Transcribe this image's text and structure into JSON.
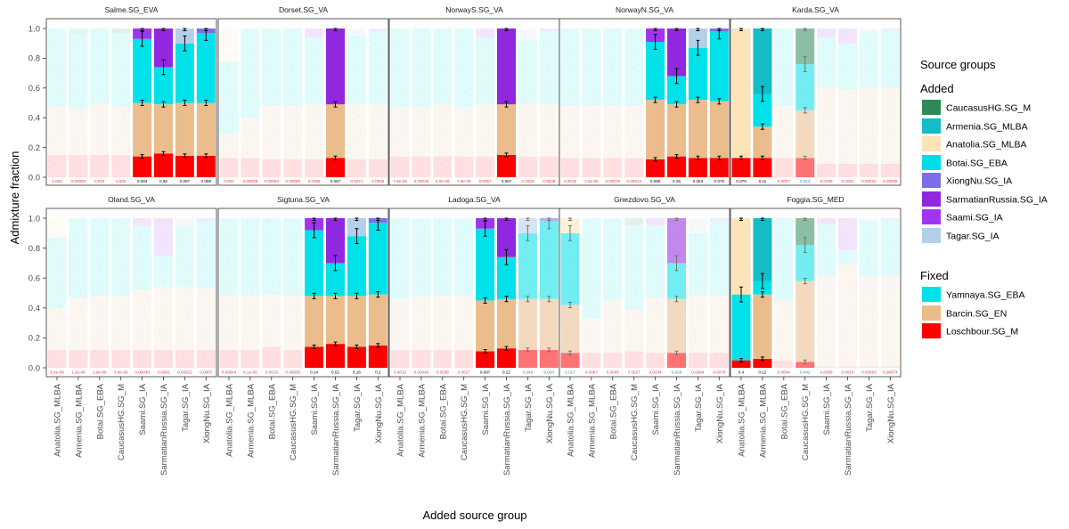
{
  "chart_data": {
    "type": "bar",
    "stacked": true,
    "xlabel": "Added source group",
    "ylabel": "Admixture fraction",
    "ylim": [
      0,
      1
    ],
    "y_ticks": [
      "0.0",
      "0.2",
      "0.4",
      "0.6",
      "0.8",
      "1.0"
    ],
    "categories": [
      "Anatolia.SG_MLBA",
      "Armenia.SG_MLBA",
      "Botai.SG_EBA",
      "CaucasusHG.SG_M",
      "Saami.SG_IA",
      "SarmatianRussia.SG_IA",
      "Tagar.SG_IA",
      "XiongNu.SG_IA"
    ],
    "component_order": [
      "Loschbour.SG_M",
      "Barcin.SG_EN",
      "Yamnaya.SG_EBA",
      "added source"
    ],
    "panels": [
      {
        "title": "Salme.SG_EVA",
        "bars": [
          {
            "v": [
              0.15,
              0.32,
              0.53,
              0.0
            ],
            "p": "0.002"
          },
          {
            "v": [
              0.15,
              0.31,
              0.5,
              0.04
            ],
            "p": "0.00093"
          },
          {
            "v": [
              0.15,
              0.34,
              0.51,
              0.0
            ],
            "p": "0.004"
          },
          {
            "v": [
              0.15,
              0.32,
              0.5,
              0.03
            ],
            "p": "0.002"
          },
          {
            "v": [
              0.14,
              0.36,
              0.43,
              0.07
            ],
            "p": "0.083"
          },
          {
            "v": [
              0.16,
              0.33,
              0.25,
              0.26
            ],
            "p": "0.66"
          },
          {
            "v": [
              0.145,
              0.355,
              0.4,
              0.1
            ],
            "p": "0.097"
          },
          {
            "v": [
              0.145,
              0.355,
              0.47,
              0.03
            ],
            "p": "0.098"
          }
        ]
      },
      {
        "title": "Dorset.SG_VA",
        "bars": [
          {
            "v": [
              0.13,
              0.16,
              0.49,
              0.22
            ],
            "p": "0.002"
          },
          {
            "v": [
              0.13,
              0.27,
              0.6,
              0.0
            ],
            "p": "0.00048"
          },
          {
            "v": [
              0.12,
              0.36,
              0.52,
              0.0
            ],
            "p": "0.00064"
          },
          {
            "v": [
              0.12,
              0.36,
              0.52,
              0.0
            ],
            "p": "0.00089"
          },
          {
            "v": [
              0.12,
              0.37,
              0.45,
              0.06
            ],
            "p": "0.0066"
          },
          {
            "v": [
              0.13,
              0.36,
              0.0,
              0.51
            ],
            "p": "0.067"
          },
          {
            "v": [
              0.12,
              0.37,
              0.46,
              0.05
            ],
            "p": "0.0071"
          },
          {
            "v": [
              0.12,
              0.37,
              0.49,
              0.02
            ],
            "p": "0.0066"
          }
        ]
      },
      {
        "title": "NorwayS.SG_VA",
        "bars": [
          {
            "v": [
              0.14,
              0.33,
              0.53,
              0.0
            ],
            "p": "7.9e-08"
          },
          {
            "v": [
              0.14,
              0.33,
              0.53,
              0.0
            ],
            "p": "0.00028"
          },
          {
            "v": [
              0.14,
              0.35,
              0.51,
              0.0
            ],
            "p": "6.8e-06"
          },
          {
            "v": [
              0.14,
              0.33,
              0.53,
              0.0
            ],
            "p": "7.9e-09"
          },
          {
            "v": [
              0.14,
              0.35,
              0.45,
              0.06
            ],
            "p": "0.0057"
          },
          {
            "v": [
              0.15,
              0.34,
              0.0,
              0.51
            ],
            "p": "0.097"
          },
          {
            "v": [
              0.14,
              0.35,
              0.43,
              0.08
            ],
            "p": "0.0028"
          },
          {
            "v": [
              0.14,
              0.35,
              0.49,
              0.02
            ],
            "p": "0.0039"
          }
        ]
      },
      {
        "title": "NorwayN.SG_VA",
        "bars": [
          {
            "v": [
              0.13,
              0.35,
              0.52,
              0.0
            ],
            "p": "0.0016"
          },
          {
            "v": [
              0.13,
              0.35,
              0.52,
              0.0
            ],
            "p": "2.3e-06"
          },
          {
            "v": [
              0.13,
              0.35,
              0.52,
              0.0
            ],
            "p": "0.00076"
          },
          {
            "v": [
              0.13,
              0.35,
              0.52,
              0.0
            ],
            "p": "0.00014"
          },
          {
            "v": [
              0.12,
              0.4,
              0.39,
              0.09
            ],
            "p": "0.055"
          },
          {
            "v": [
              0.14,
              0.35,
              0.19,
              0.32
            ],
            "p": "0.25"
          },
          {
            "v": [
              0.13,
              0.39,
              0.35,
              0.13
            ],
            "p": "0.083"
          },
          {
            "v": [
              0.13,
              0.38,
              0.47,
              0.02
            ],
            "p": "0.076"
          }
        ]
      },
      {
        "title": "Karda.SG_VA",
        "bars": [
          {
            "v": [
              0.13,
              0.0,
              0.0,
              0.87
            ],
            "p": "0.079"
          },
          {
            "v": [
              0.13,
              0.21,
              0.22,
              0.44
            ],
            "p": "0.11"
          },
          {
            "v": [
              0.13,
              0.35,
              0.52,
              0.0
            ],
            "p": "0.0007"
          },
          {
            "v": [
              0.13,
              0.32,
              0.31,
              0.24
            ],
            "p": "0.013"
          },
          {
            "v": [
              0.09,
              0.51,
              0.34,
              0.06
            ],
            "p": "0.0036"
          },
          {
            "v": [
              0.09,
              0.5,
              0.31,
              0.1
            ],
            "p": "0.0062"
          },
          {
            "v": [
              0.09,
              0.51,
              0.38,
              0.02
            ],
            "p": "0.00032"
          },
          {
            "v": [
              0.09,
              0.51,
              0.39,
              0.01
            ],
            "p": "0.00039"
          }
        ]
      },
      {
        "title": "Oland.SG_VA",
        "bars": [
          {
            "v": [
              0.12,
              0.28,
              0.47,
              0.13
            ],
            "p": "5.6e-09"
          },
          {
            "v": [
              0.12,
              0.35,
              0.53,
              0.0
            ],
            "p": "1.3e-08"
          },
          {
            "v": [
              0.12,
              0.36,
              0.52,
              0.0
            ],
            "p": "2.9e-08"
          },
          {
            "v": [
              0.12,
              0.36,
              0.52,
              0.0
            ],
            "p": "3.8e-09"
          },
          {
            "v": [
              0.12,
              0.4,
              0.43,
              0.05
            ],
            "p": "0.00033"
          },
          {
            "v": [
              0.12,
              0.42,
              0.21,
              0.25
            ],
            "p": "0.0002"
          },
          {
            "v": [
              0.12,
              0.42,
              0.4,
              0.06
            ],
            "p": "0.00015"
          },
          {
            "v": [
              0.12,
              0.41,
              0.45,
              0.02
            ],
            "p": "0.0007"
          }
        ]
      },
      {
        "title": "Sigtuna.SG_VA",
        "bars": [
          {
            "v": [
              0.12,
              0.36,
              0.52,
              0.0
            ],
            "p": "0.00044"
          },
          {
            "v": [
              0.12,
              0.36,
              0.52,
              0.0
            ],
            "p": "8.1e-09"
          },
          {
            "v": [
              0.14,
              0.35,
              0.51,
              0.0
            ],
            "p": "0.0019"
          },
          {
            "v": [
              0.12,
              0.36,
              0.52,
              0.0
            ],
            "p": "0.00035"
          },
          {
            "v": [
              0.14,
              0.34,
              0.44,
              0.08
            ],
            "p": "0.14"
          },
          {
            "v": [
              0.16,
              0.32,
              0.22,
              0.3
            ],
            "p": "0.52"
          },
          {
            "v": [
              0.14,
              0.34,
              0.4,
              0.12
            ],
            "p": "0.16"
          },
          {
            "v": [
              0.15,
              0.34,
              0.48,
              0.03
            ],
            "p": "0.2"
          }
        ]
      },
      {
        "title": "Ladoga.SG_VA",
        "bars": [
          {
            "v": [
              0.12,
              0.34,
              0.54,
              0.0
            ],
            "p": "0.0018"
          },
          {
            "v": [
              0.12,
              0.36,
              0.52,
              0.0
            ],
            "p": "0.00045"
          },
          {
            "v": [
              0.12,
              0.36,
              0.52,
              0.0
            ],
            "p": "0.0036"
          },
          {
            "v": [
              0.12,
              0.36,
              0.52,
              0.0
            ],
            "p": "0.0017"
          },
          {
            "v": [
              0.11,
              0.34,
              0.48,
              0.07
            ],
            "p": "0.097"
          },
          {
            "v": [
              0.13,
              0.33,
              0.28,
              0.26
            ],
            "p": "0.22"
          },
          {
            "v": [
              0.12,
              0.34,
              0.44,
              0.1
            ],
            "p": "0.046"
          },
          {
            "v": [
              0.12,
              0.34,
              0.52,
              0.02
            ],
            "p": "0.044"
          }
        ]
      },
      {
        "title": "Gnezdovo.SG_VA",
        "bars": [
          {
            "v": [
              0.1,
              0.32,
              0.48,
              0.1
            ],
            "p": "0.017"
          },
          {
            "v": [
              0.1,
              0.23,
              0.67,
              0.0
            ],
            "p": "0.0067"
          },
          {
            "v": [
              0.1,
              0.35,
              0.55,
              0.0
            ],
            "p": "0.0005"
          },
          {
            "v": [
              0.11,
              0.28,
              0.56,
              0.05
            ],
            "p": "0.0027"
          },
          {
            "v": [
              0.1,
              0.37,
              0.48,
              0.05
            ],
            "p": "0.0034"
          },
          {
            "v": [
              0.1,
              0.36,
              0.24,
              0.3
            ],
            "p": "0.026"
          },
          {
            "v": [
              0.1,
              0.38,
              0.42,
              0.1
            ],
            "p": "0.0084"
          },
          {
            "v": [
              0.1,
              0.38,
              0.5,
              0.02
            ],
            "p": "0.0079"
          }
        ]
      },
      {
        "title": "Foggia.SG_MED",
        "bars": [
          {
            "v": [
              0.05,
              0.0,
              0.44,
              0.51
            ],
            "p": "0.4"
          },
          {
            "v": [
              0.06,
              0.43,
              0.09,
              0.42
            ],
            "p": "0.12"
          },
          {
            "v": [
              0.05,
              0.4,
              0.55,
              0.0
            ],
            "p": "0.0044"
          },
          {
            "v": [
              0.04,
              0.54,
              0.24,
              0.18
            ],
            "p": "0.042"
          },
          {
            "v": [
              0.01,
              0.6,
              0.35,
              0.04
            ],
            "p": "0.0008"
          },
          {
            "v": [
              0.01,
              0.68,
              0.1,
              0.21
            ],
            "p": "0.0014"
          },
          {
            "v": [
              0.01,
              0.6,
              0.37,
              0.02
            ],
            "p": "0.00083"
          },
          {
            "v": [
              0.01,
              0.6,
              0.38,
              0.01
            ],
            "p": "0.00074"
          }
        ]
      }
    ]
  },
  "colors": {
    "CaucasusHG.SG_M": "#2f8a5a",
    "Armenia.SG_MLBA": "#13bcc6",
    "Anatolia.SG_MLBA": "#fae4b8",
    "Botai.SG_EBA": "#00dde8",
    "XiongNu.SG_IA": "#7a6fe8",
    "SarmatianRussia.SG_IA": "#9128e0",
    "Saami.SG_IA": "#a035f0",
    "Tagar.SG_IA": "#b4cfe9",
    "Yamnaya.SG_EBA": "#00e1ea",
    "Barcin.SG_EN": "#ebbd8c",
    "Loschbour.SG_M": "#ff0000",
    "p_high": "#000000",
    "p_mid": "#3b7fc4",
    "p_low": "#e04040"
  },
  "legend": {
    "title": "Source groups",
    "added_title": "Added",
    "added": [
      {
        "label": "CaucasusHG.SG_M",
        "color": "#2f8a5a"
      },
      {
        "label": "Armenia.SG_MLBA",
        "color": "#13bcc6"
      },
      {
        "label": "Anatolia.SG_MLBA",
        "color": "#fae4b8"
      },
      {
        "label": "Botai.SG_EBA",
        "color": "#00dde8"
      },
      {
        "label": "XiongNu.SG_IA",
        "color": "#7a6fe8"
      },
      {
        "label": "SarmatianRussia.SG_IA",
        "color": "#9128e0"
      },
      {
        "label": "Saami.SG_IA",
        "color": "#a035f0"
      },
      {
        "label": "Tagar.SG_IA",
        "color": "#b4cfe9"
      }
    ],
    "fixed_title": "Fixed",
    "fixed": [
      {
        "label": "Yamnaya.SG_EBA",
        "color": "#00e1ea"
      },
      {
        "label": "Barcin.SG_EN",
        "color": "#ebbd8c"
      },
      {
        "label": "Loschbour.SG_M",
        "color": "#ff0000"
      }
    ]
  }
}
